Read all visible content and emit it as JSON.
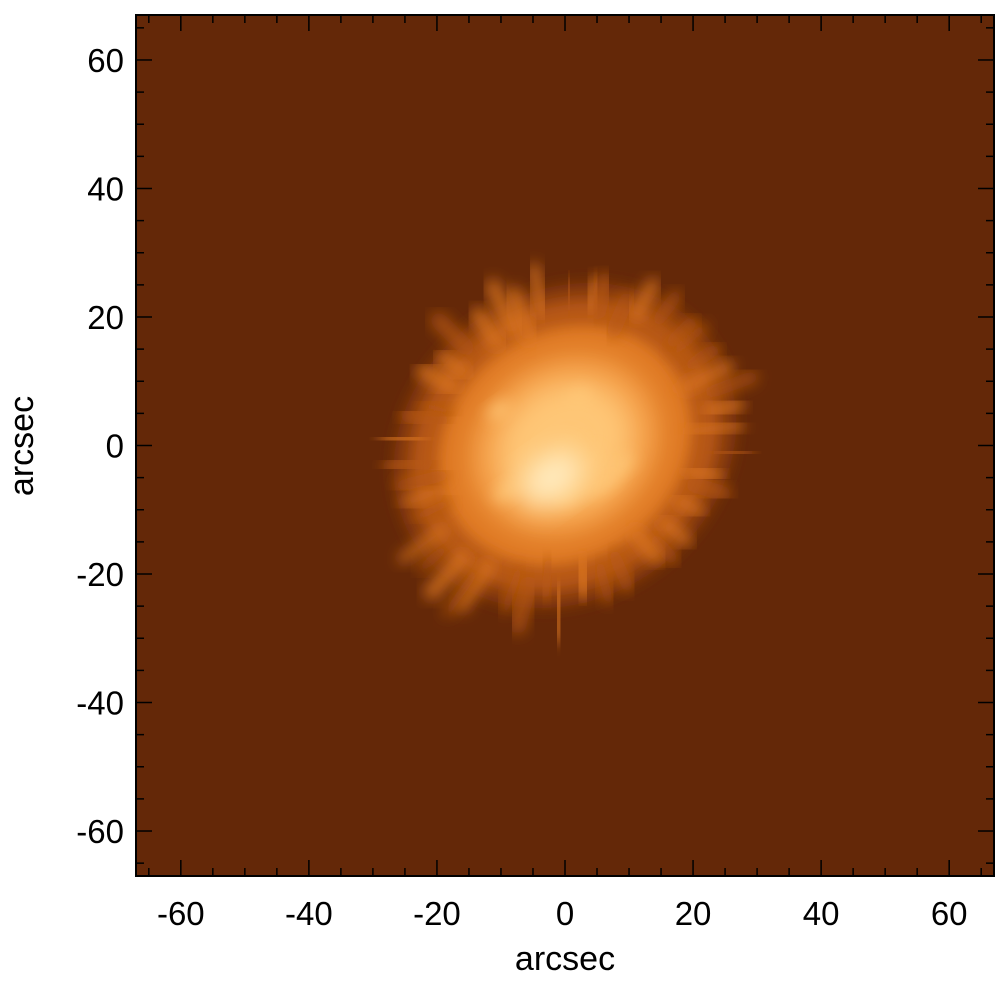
{
  "chart_data": {
    "type": "heatmap",
    "title": "",
    "xlabel": "arcsec",
    "ylabel": "arcsec",
    "xlim": [
      -67,
      67
    ],
    "ylim": [
      -67,
      67
    ],
    "x_ticks": [
      -60,
      -40,
      -20,
      0,
      20,
      40,
      60
    ],
    "y_ticks": [
      60,
      40,
      20,
      0,
      -20,
      -40,
      -60
    ],
    "x_minor_step": 5,
    "y_minor_step": 5,
    "grid": false,
    "colormap": {
      "name": "solar-orange",
      "background": "#642808",
      "stops": [
        "#642808",
        "#8a3c0c",
        "#b85a14",
        "#e07a22",
        "#f5a048",
        "#ffc878",
        "#fff0c8"
      ]
    },
    "source": {
      "shape": "elongated blob",
      "center": [
        0,
        0
      ],
      "semi_major_arcsec": 28,
      "semi_minor_arcsec": 24,
      "position_angle_deg": 35,
      "peak_location": [
        -2,
        -5
      ],
      "extent_x": [
        -33,
        28
      ],
      "extent_y": [
        -30,
        31
      ]
    }
  }
}
